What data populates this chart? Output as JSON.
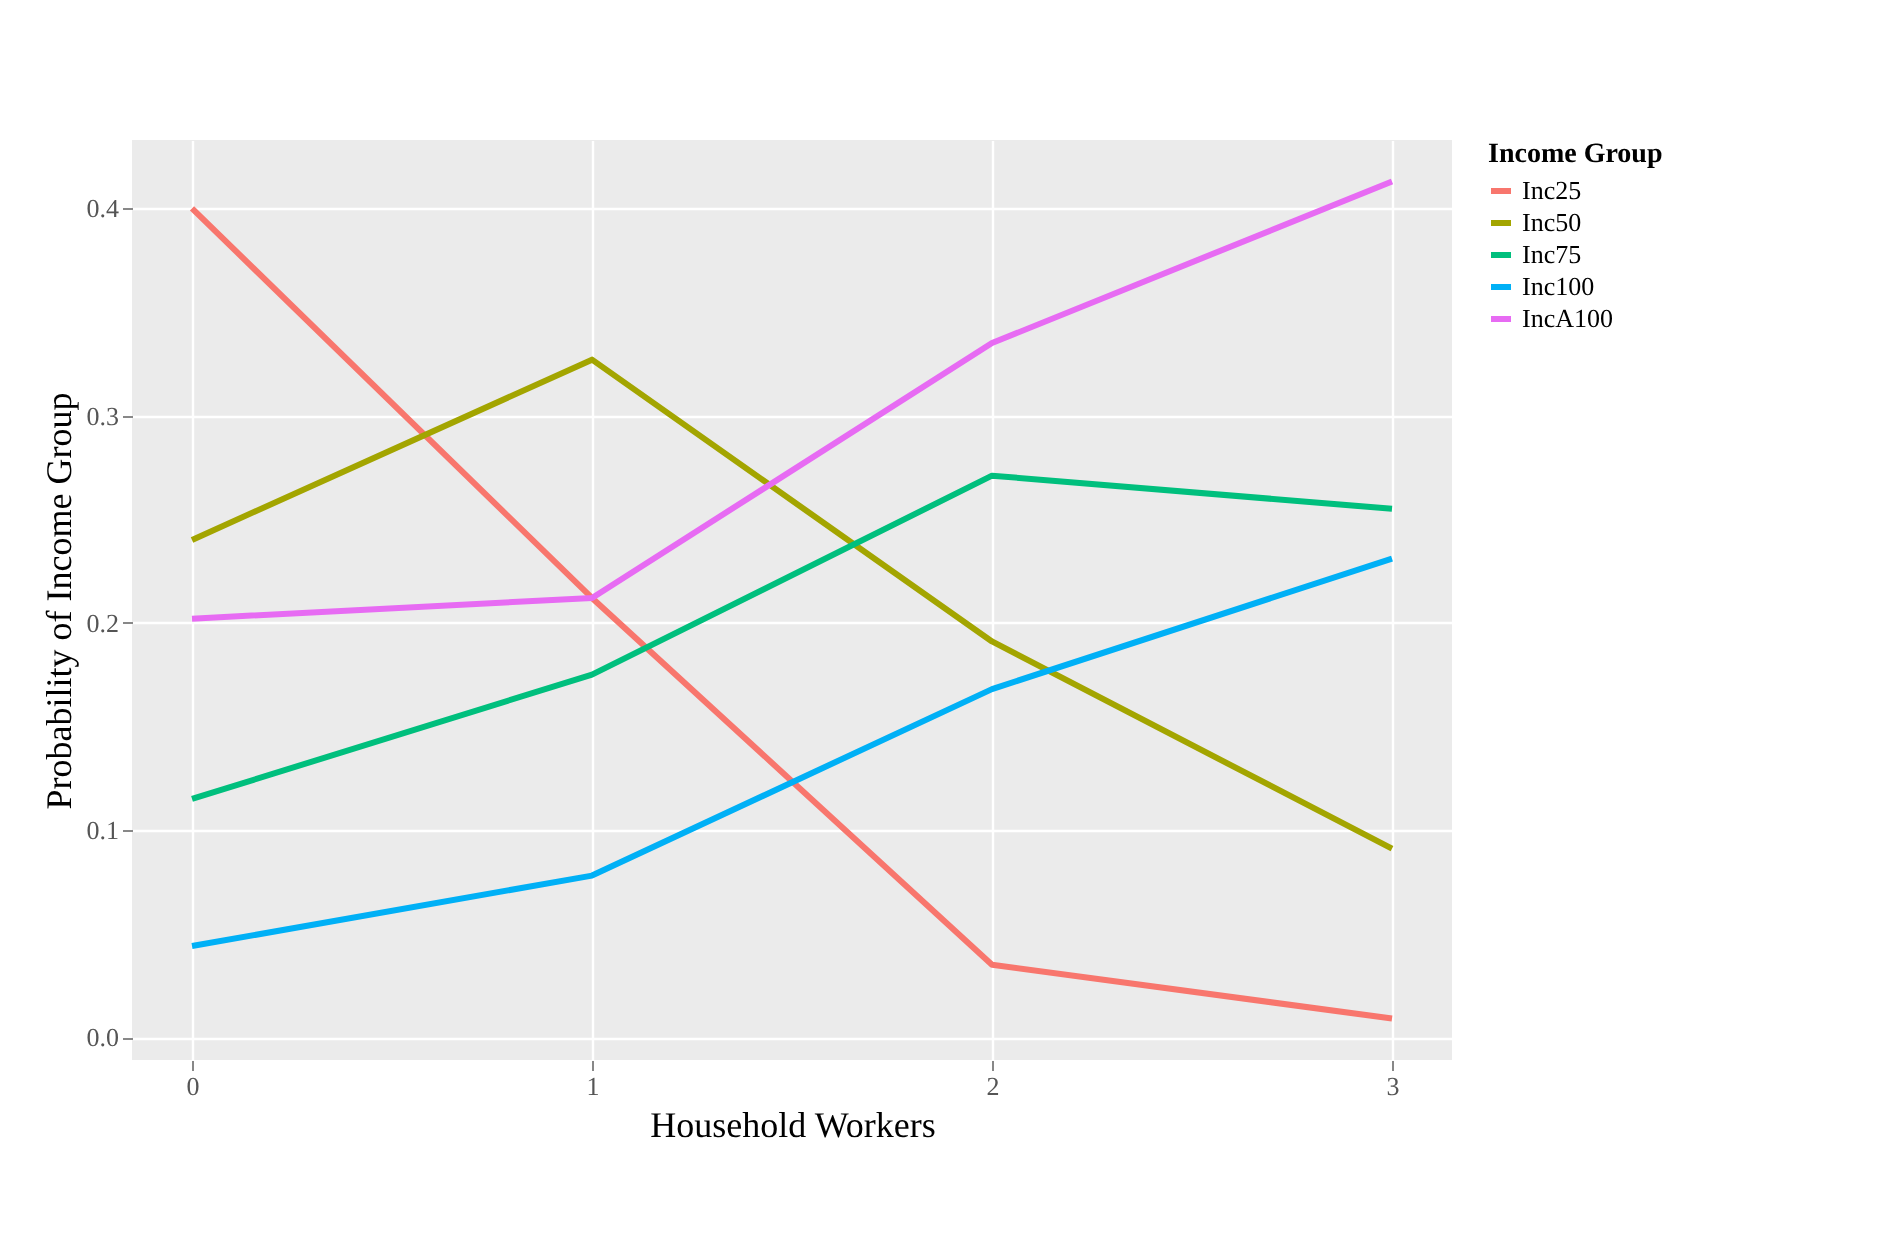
{
  "chart_data": {
    "type": "line",
    "xlabel": "Household Workers",
    "ylabel": "Probability of Income Group",
    "legend_title": "Income Group",
    "x": [
      0,
      1,
      2,
      3
    ],
    "xlim": [
      -0.15,
      3.15
    ],
    "xticks": [
      0,
      1,
      2,
      3
    ],
    "ylim": [
      -0.011,
      0.433
    ],
    "yticks": [
      {
        "value": 0,
        "label": "0.0"
      },
      0.1,
      0.2,
      0.3,
      0.4
    ],
    "grid": true,
    "legend": "right",
    "marker": "none",
    "line_style": "solid",
    "series": [
      {
        "name": "Inc25",
        "color": "#f8766d",
        "values": [
          0.4,
          0.212,
          0.035,
          0.009
        ]
      },
      {
        "name": "Inc50",
        "color": "#a3a500",
        "values": [
          0.24,
          0.327,
          0.191,
          0.091
        ]
      },
      {
        "name": "Inc75",
        "color": "#00bf7d",
        "values": [
          0.115,
          0.175,
          0.271,
          0.255
        ]
      },
      {
        "name": "Inc100",
        "color": "#00b0f6",
        "values": [
          0.044,
          0.078,
          0.168,
          0.231
        ]
      },
      {
        "name": "IncA100",
        "color": "#e76bf3",
        "values": [
          0.202,
          0.212,
          0.335,
          0.413
        ]
      }
    ]
  }
}
